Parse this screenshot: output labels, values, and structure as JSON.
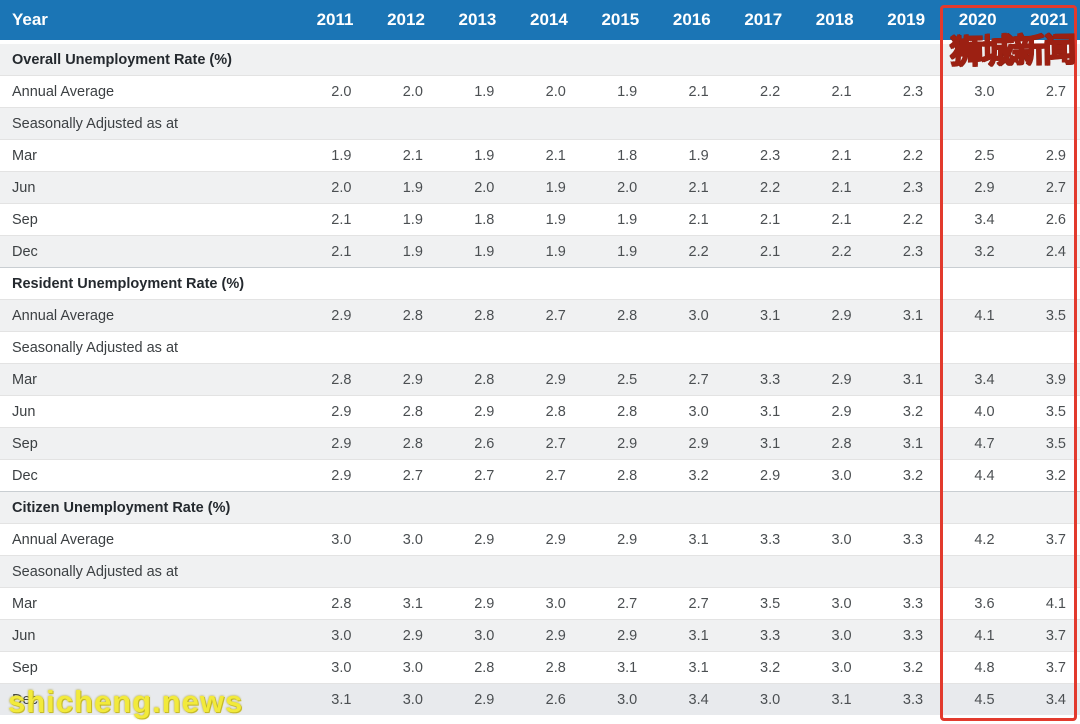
{
  "table": {
    "year_header": "Year",
    "years": [
      "2011",
      "2012",
      "2013",
      "2014",
      "2015",
      "2016",
      "2017",
      "2018",
      "2019",
      "2020",
      "2021"
    ],
    "sections": [
      {
        "title": "Overall Unemployment Rate (%)",
        "rows": [
          {
            "label": "Annual Average",
            "values": [
              "2.0",
              "2.0",
              "1.9",
              "2.0",
              "1.9",
              "2.1",
              "2.2",
              "2.1",
              "2.3",
              "3.0",
              "2.7"
            ]
          },
          {
            "label": "Seasonally Adjusted as at",
            "values": []
          },
          {
            "label": "Mar",
            "values": [
              "1.9",
              "2.1",
              "1.9",
              "2.1",
              "1.8",
              "1.9",
              "2.3",
              "2.1",
              "2.2",
              "2.5",
              "2.9"
            ]
          },
          {
            "label": "Jun",
            "values": [
              "2.0",
              "1.9",
              "2.0",
              "1.9",
              "2.0",
              "2.1",
              "2.2",
              "2.1",
              "2.3",
              "2.9",
              "2.7"
            ]
          },
          {
            "label": "Sep",
            "values": [
              "2.1",
              "1.9",
              "1.8",
              "1.9",
              "1.9",
              "2.1",
              "2.1",
              "2.1",
              "2.2",
              "3.4",
              "2.6"
            ]
          },
          {
            "label": "Dec",
            "values": [
              "2.1",
              "1.9",
              "1.9",
              "1.9",
              "1.9",
              "2.2",
              "2.1",
              "2.2",
              "2.3",
              "3.2",
              "2.4"
            ]
          }
        ]
      },
      {
        "title": "Resident Unemployment Rate (%)",
        "rows": [
          {
            "label": "Annual Average",
            "values": [
              "2.9",
              "2.8",
              "2.8",
              "2.7",
              "2.8",
              "3.0",
              "3.1",
              "2.9",
              "3.1",
              "4.1",
              "3.5"
            ]
          },
          {
            "label": "Seasonally Adjusted as at",
            "values": []
          },
          {
            "label": "Mar",
            "values": [
              "2.8",
              "2.9",
              "2.8",
              "2.9",
              "2.5",
              "2.7",
              "3.3",
              "2.9",
              "3.1",
              "3.4",
              "3.9"
            ]
          },
          {
            "label": "Jun",
            "values": [
              "2.9",
              "2.8",
              "2.9",
              "2.8",
              "2.8",
              "3.0",
              "3.1",
              "2.9",
              "3.2",
              "4.0",
              "3.5"
            ]
          },
          {
            "label": "Sep",
            "values": [
              "2.9",
              "2.8",
              "2.6",
              "2.7",
              "2.9",
              "2.9",
              "3.1",
              "2.8",
              "3.1",
              "4.7",
              "3.5"
            ]
          },
          {
            "label": "Dec",
            "values": [
              "2.9",
              "2.7",
              "2.7",
              "2.7",
              "2.8",
              "3.2",
              "2.9",
              "3.0",
              "3.2",
              "4.4",
              "3.2"
            ]
          }
        ]
      },
      {
        "title": "Citizen Unemployment Rate (%)",
        "rows": [
          {
            "label": "Annual Average",
            "values": [
              "3.0",
              "3.0",
              "2.9",
              "2.9",
              "2.9",
              "3.1",
              "3.3",
              "3.0",
              "3.3",
              "4.2",
              "3.7"
            ]
          },
          {
            "label": "Seasonally Adjusted as at",
            "values": []
          },
          {
            "label": "Mar",
            "values": [
              "2.8",
              "3.1",
              "2.9",
              "3.0",
              "2.7",
              "2.7",
              "3.5",
              "3.0",
              "3.3",
              "3.6",
              "4.1"
            ]
          },
          {
            "label": "Jun",
            "values": [
              "3.0",
              "2.9",
              "3.0",
              "2.9",
              "2.9",
              "3.1",
              "3.3",
              "3.0",
              "3.3",
              "4.1",
              "3.7"
            ]
          },
          {
            "label": "Sep",
            "values": [
              "3.0",
              "3.0",
              "2.8",
              "2.8",
              "3.1",
              "3.1",
              "3.2",
              "3.0",
              "3.2",
              "4.8",
              "3.7"
            ]
          },
          {
            "label": "Dec",
            "values": [
              "3.1",
              "3.0",
              "2.9",
              "2.6",
              "3.0",
              "3.4",
              "3.0",
              "3.1",
              "3.3",
              "4.5",
              "3.4"
            ]
          }
        ]
      }
    ]
  },
  "highlight": {
    "highlighted_years": [
      "2020",
      "2021"
    ],
    "border_color": "#E23A2D"
  },
  "watermarks": {
    "top_right": "狮城新闻",
    "bottom_left": "shicheng.news",
    "text_color": "#F2EA3B"
  },
  "colors": {
    "header_bg": "#1B75B5",
    "header_text": "#FFFFFF",
    "stripe_gray": "#F0F1F2",
    "row_white": "#FFFFFF"
  }
}
